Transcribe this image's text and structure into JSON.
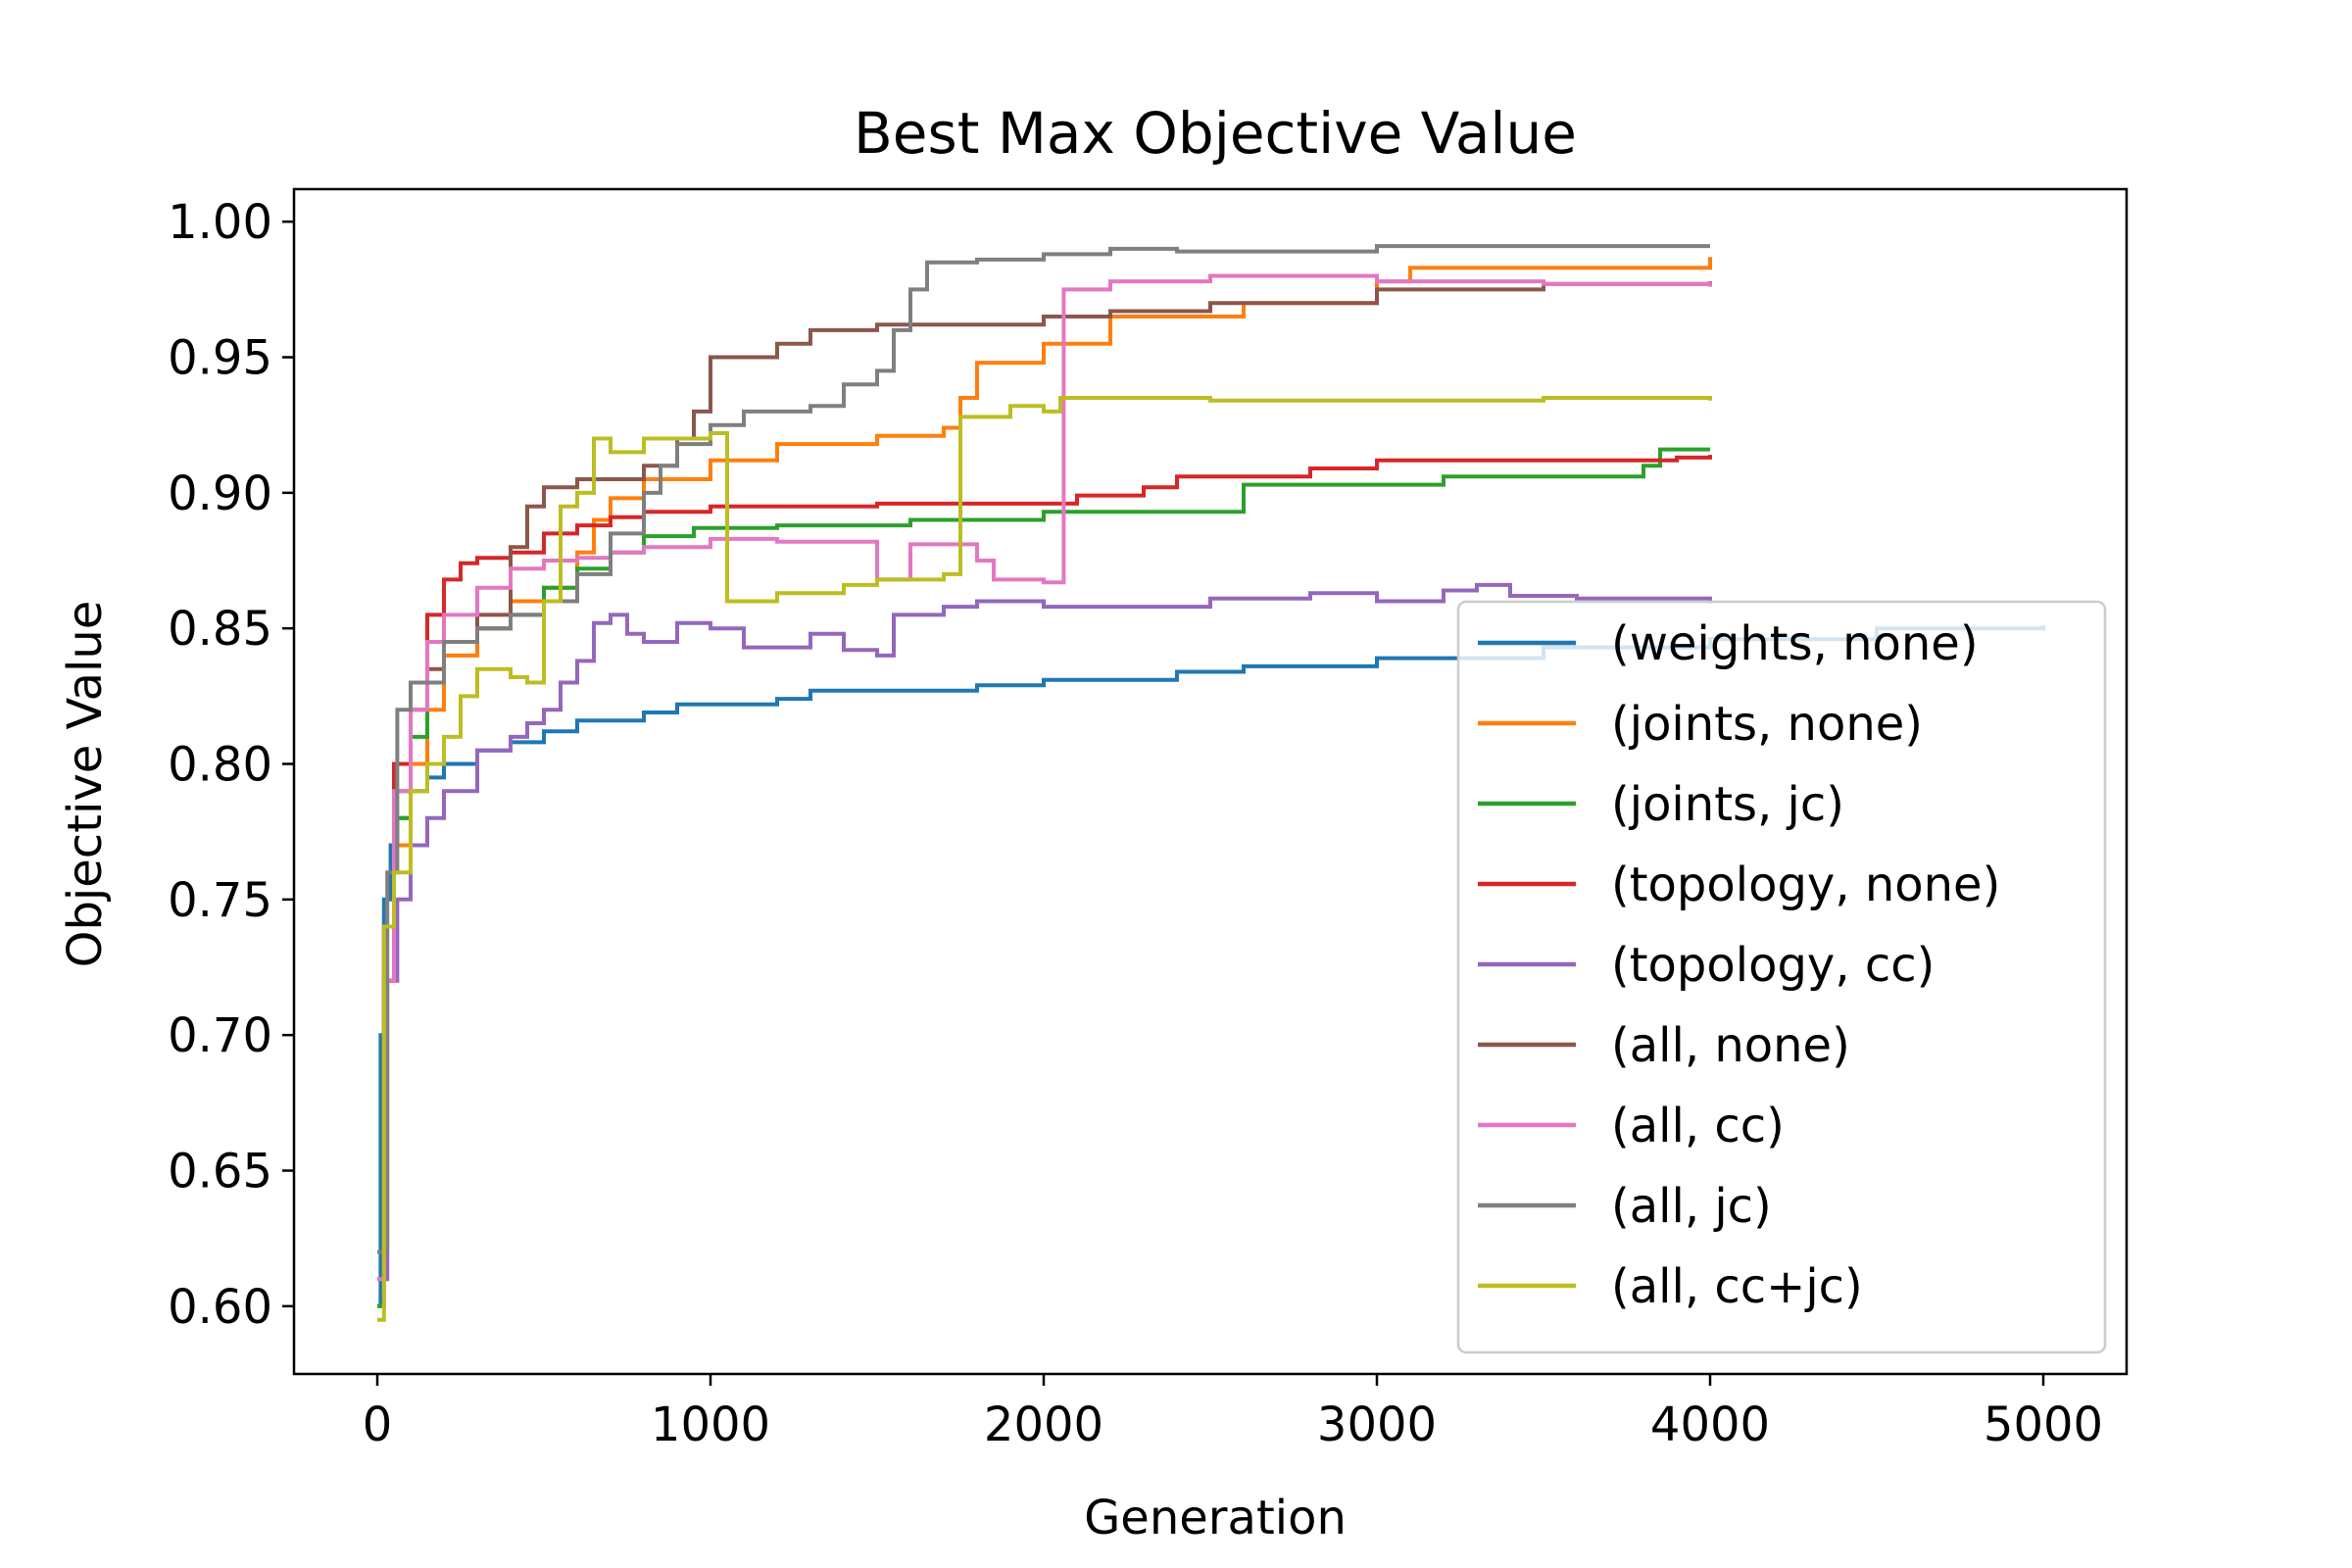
{
  "chart_data": {
    "type": "line",
    "title": "Best Max Objective Value",
    "xlabel": "Generation",
    "ylabel": "Objective Value",
    "xlim": [
      -250,
      5250
    ],
    "ylim": [
      0.575,
      1.012
    ],
    "xticks": [
      0,
      1000,
      2000,
      3000,
      4000,
      5000
    ],
    "xtick_labels": [
      "0",
      "1000",
      "2000",
      "3000",
      "4000",
      "5000"
    ],
    "yticks": [
      0.6,
      0.65,
      0.7,
      0.75,
      0.8,
      0.85,
      0.9,
      0.95,
      1.0
    ],
    "ytick_labels": [
      "0.60",
      "0.65",
      "0.70",
      "0.75",
      "0.80",
      "0.85",
      "0.90",
      "0.95",
      "1.00"
    ],
    "grid": false,
    "legend_position": "lower right",
    "series": [
      {
        "name": "(weights, none)",
        "color": "#1f77b4",
        "points": [
          [
            0,
            0.6
          ],
          [
            10,
            0.7
          ],
          [
            20,
            0.75
          ],
          [
            40,
            0.77
          ],
          [
            60,
            0.78
          ],
          [
            100,
            0.79
          ],
          [
            150,
            0.795
          ],
          [
            200,
            0.8
          ],
          [
            300,
            0.805
          ],
          [
            400,
            0.808
          ],
          [
            500,
            0.812
          ],
          [
            600,
            0.816
          ],
          [
            800,
            0.819
          ],
          [
            900,
            0.822
          ],
          [
            1200,
            0.824
          ],
          [
            1300,
            0.827
          ],
          [
            1800,
            0.829
          ],
          [
            2000,
            0.831
          ],
          [
            2400,
            0.834
          ],
          [
            2600,
            0.836
          ],
          [
            3000,
            0.839
          ],
          [
            3500,
            0.843
          ],
          [
            4000,
            0.846
          ],
          [
            4500,
            0.85
          ],
          [
            5000,
            0.851
          ]
        ]
      },
      {
        "name": "(joints, none)",
        "color": "#ff7f0e",
        "points": [
          [
            0,
            0.62
          ],
          [
            20,
            0.72
          ],
          [
            50,
            0.77
          ],
          [
            100,
            0.8
          ],
          [
            150,
            0.82
          ],
          [
            200,
            0.84
          ],
          [
            300,
            0.85
          ],
          [
            400,
            0.86
          ],
          [
            500,
            0.865
          ],
          [
            600,
            0.878
          ],
          [
            650,
            0.89
          ],
          [
            700,
            0.898
          ],
          [
            800,
            0.905
          ],
          [
            1000,
            0.912
          ],
          [
            1200,
            0.918
          ],
          [
            1500,
            0.921
          ],
          [
            1700,
            0.924
          ],
          [
            1750,
            0.935
          ],
          [
            1800,
            0.948
          ],
          [
            2000,
            0.955
          ],
          [
            2200,
            0.965
          ],
          [
            2600,
            0.97
          ],
          [
            3000,
            0.978
          ],
          [
            3100,
            0.983
          ],
          [
            4000,
            0.987
          ]
        ]
      },
      {
        "name": "(joints, jc)",
        "color": "#2ca02c",
        "points": [
          [
            0,
            0.6
          ],
          [
            20,
            0.72
          ],
          [
            50,
            0.78
          ],
          [
            100,
            0.81
          ],
          [
            150,
            0.83
          ],
          [
            200,
            0.845
          ],
          [
            300,
            0.85
          ],
          [
            400,
            0.855
          ],
          [
            500,
            0.865
          ],
          [
            600,
            0.872
          ],
          [
            700,
            0.878
          ],
          [
            800,
            0.884
          ],
          [
            950,
            0.887
          ],
          [
            1200,
            0.888
          ],
          [
            1600,
            0.89
          ],
          [
            2000,
            0.893
          ],
          [
            2600,
            0.903
          ],
          [
            3200,
            0.906
          ],
          [
            3800,
            0.91
          ],
          [
            3850,
            0.916
          ],
          [
            4000,
            0.916
          ]
        ]
      },
      {
        "name": "(topology, none)",
        "color": "#d62728",
        "points": [
          [
            0,
            0.61
          ],
          [
            20,
            0.72
          ],
          [
            50,
            0.8
          ],
          [
            100,
            0.83
          ],
          [
            150,
            0.855
          ],
          [
            200,
            0.868
          ],
          [
            250,
            0.874
          ],
          [
            300,
            0.876
          ],
          [
            400,
            0.878
          ],
          [
            500,
            0.885
          ],
          [
            600,
            0.888
          ],
          [
            700,
            0.891
          ],
          [
            800,
            0.893
          ],
          [
            1000,
            0.895
          ],
          [
            1500,
            0.896
          ],
          [
            2100,
            0.899
          ],
          [
            2300,
            0.902
          ],
          [
            2400,
            0.906
          ],
          [
            2800,
            0.909
          ],
          [
            3000,
            0.912
          ],
          [
            3900,
            0.913
          ],
          [
            4000,
            0.914
          ]
        ]
      },
      {
        "name": "(topology, cc)",
        "color": "#9467bd",
        "points": [
          [
            0,
            0.61
          ],
          [
            30,
            0.72
          ],
          [
            60,
            0.75
          ],
          [
            100,
            0.77
          ],
          [
            150,
            0.78
          ],
          [
            200,
            0.79
          ],
          [
            300,
            0.805
          ],
          [
            400,
            0.81
          ],
          [
            450,
            0.815
          ],
          [
            500,
            0.82
          ],
          [
            550,
            0.83
          ],
          [
            600,
            0.838
          ],
          [
            650,
            0.852
          ],
          [
            700,
            0.855
          ],
          [
            750,
            0.848
          ],
          [
            800,
            0.845
          ],
          [
            900,
            0.852
          ],
          [
            1000,
            0.85
          ],
          [
            1100,
            0.843
          ],
          [
            1300,
            0.848
          ],
          [
            1400,
            0.842
          ],
          [
            1500,
            0.84
          ],
          [
            1550,
            0.855
          ],
          [
            1700,
            0.858
          ],
          [
            1800,
            0.86
          ],
          [
            2000,
            0.858
          ],
          [
            2200,
            0.858
          ],
          [
            2500,
            0.861
          ],
          [
            2800,
            0.863
          ],
          [
            3000,
            0.86
          ],
          [
            3200,
            0.864
          ],
          [
            3300,
            0.866
          ],
          [
            3400,
            0.862
          ],
          [
            3600,
            0.861
          ],
          [
            4000,
            0.859
          ]
        ]
      },
      {
        "name": "(all, none)",
        "color": "#8c564b",
        "points": [
          [
            0,
            0.62
          ],
          [
            20,
            0.74
          ],
          [
            50,
            0.79
          ],
          [
            100,
            0.82
          ],
          [
            150,
            0.835
          ],
          [
            200,
            0.845
          ],
          [
            300,
            0.855
          ],
          [
            400,
            0.88
          ],
          [
            450,
            0.895
          ],
          [
            500,
            0.902
          ],
          [
            600,
            0.905
          ],
          [
            800,
            0.91
          ],
          [
            900,
            0.92
          ],
          [
            950,
            0.93
          ],
          [
            1000,
            0.95
          ],
          [
            1200,
            0.955
          ],
          [
            1300,
            0.96
          ],
          [
            1500,
            0.962
          ],
          [
            2000,
            0.965
          ],
          [
            2200,
            0.967
          ],
          [
            2500,
            0.97
          ],
          [
            3000,
            0.975
          ],
          [
            3500,
            0.977
          ],
          [
            4000,
            0.978
          ]
        ]
      },
      {
        "name": "(all, cc)",
        "color": "#e377c2",
        "points": [
          [
            0,
            0.61
          ],
          [
            20,
            0.72
          ],
          [
            50,
            0.79
          ],
          [
            100,
            0.82
          ],
          [
            150,
            0.845
          ],
          [
            200,
            0.855
          ],
          [
            300,
            0.865
          ],
          [
            400,
            0.872
          ],
          [
            500,
            0.875
          ],
          [
            600,
            0.876
          ],
          [
            700,
            0.878
          ],
          [
            800,
            0.88
          ],
          [
            1000,
            0.883
          ],
          [
            1200,
            0.882
          ],
          [
            1500,
            0.868
          ],
          [
            1600,
            0.881
          ],
          [
            1800,
            0.875
          ],
          [
            1850,
            0.868
          ],
          [
            2000,
            0.867
          ],
          [
            2050,
            0.867
          ],
          [
            2060,
            0.975
          ],
          [
            2200,
            0.978
          ],
          [
            2500,
            0.98
          ],
          [
            3000,
            0.978
          ],
          [
            3500,
            0.977
          ],
          [
            4000,
            0.976
          ]
        ]
      },
      {
        "name": "(all, jc)",
        "color": "#7f7f7f",
        "points": [
          [
            0,
            0.62
          ],
          [
            30,
            0.76
          ],
          [
            60,
            0.82
          ],
          [
            100,
            0.83
          ],
          [
            200,
            0.845
          ],
          [
            300,
            0.85
          ],
          [
            400,
            0.855
          ],
          [
            500,
            0.86
          ],
          [
            600,
            0.87
          ],
          [
            700,
            0.885
          ],
          [
            800,
            0.9
          ],
          [
            850,
            0.91
          ],
          [
            900,
            0.918
          ],
          [
            1000,
            0.925
          ],
          [
            1100,
            0.93
          ],
          [
            1300,
            0.932
          ],
          [
            1400,
            0.94
          ],
          [
            1500,
            0.945
          ],
          [
            1550,
            0.96
          ],
          [
            1600,
            0.975
          ],
          [
            1650,
            0.985
          ],
          [
            1800,
            0.986
          ],
          [
            2000,
            0.988
          ],
          [
            2200,
            0.99
          ],
          [
            2400,
            0.989
          ],
          [
            2600,
            0.989
          ],
          [
            3000,
            0.991
          ],
          [
            4000,
            0.991
          ]
        ]
      },
      {
        "name": "(all, cc+jc)",
        "color": "#bcbd22",
        "points": [
          [
            0,
            0.595
          ],
          [
            20,
            0.74
          ],
          [
            50,
            0.76
          ],
          [
            100,
            0.79
          ],
          [
            150,
            0.8
          ],
          [
            200,
            0.81
          ],
          [
            250,
            0.825
          ],
          [
            300,
            0.835
          ],
          [
            400,
            0.832
          ],
          [
            450,
            0.83
          ],
          [
            500,
            0.86
          ],
          [
            550,
            0.895
          ],
          [
            600,
            0.9
          ],
          [
            650,
            0.92
          ],
          [
            700,
            0.915
          ],
          [
            800,
            0.92
          ],
          [
            1000,
            0.922
          ],
          [
            1050,
            0.86
          ],
          [
            1200,
            0.863
          ],
          [
            1400,
            0.866
          ],
          [
            1500,
            0.868
          ],
          [
            1700,
            0.87
          ],
          [
            1750,
            0.928
          ],
          [
            1900,
            0.932
          ],
          [
            2000,
            0.93
          ],
          [
            2050,
            0.935
          ],
          [
            2500,
            0.934
          ],
          [
            3000,
            0.934
          ],
          [
            3500,
            0.935
          ],
          [
            4000,
            0.934
          ]
        ]
      }
    ]
  }
}
